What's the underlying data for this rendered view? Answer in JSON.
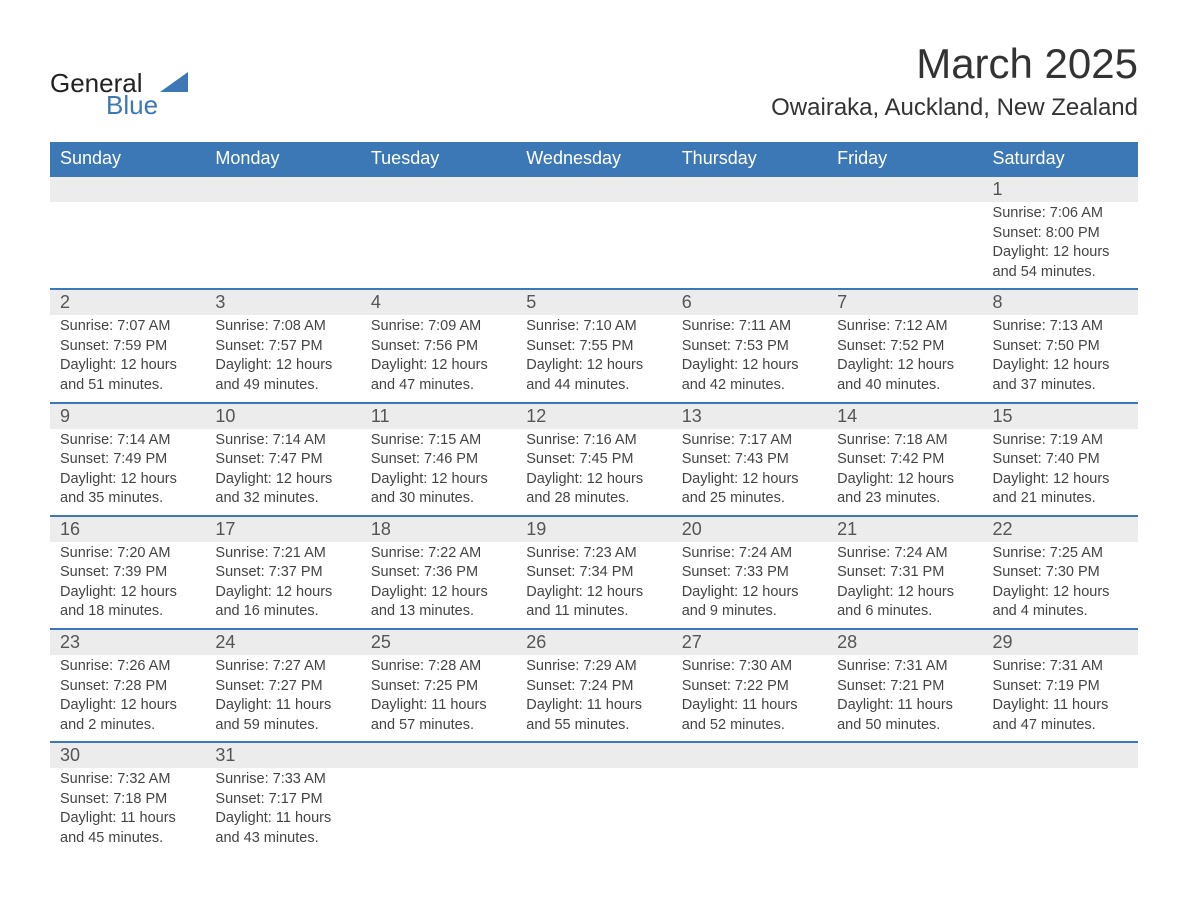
{
  "logo": {
    "word1": "General",
    "word2": "Blue"
  },
  "title": {
    "month": "March 2025",
    "location": "Owairaka, Auckland, New Zealand"
  },
  "colors": {
    "header_bg": "#3b78b5",
    "header_text": "#ffffff",
    "daynum_bg": "#ececec",
    "body_text": "#444444",
    "row_divider": "#3b78b5",
    "page_bg": "#ffffff",
    "logo_accent": "#3b78b5",
    "logo_text": "#222222"
  },
  "typography": {
    "title_month_fontsize": 42,
    "title_location_fontsize": 24,
    "weekday_fontsize": 18,
    "daynum_fontsize": 18,
    "body_fontsize": 14.5,
    "font_family": "Arial"
  },
  "layout": {
    "columns": 7,
    "rows": 6,
    "first_day_column_index": 6,
    "last_day": 31
  },
  "weekdays": [
    "Sunday",
    "Monday",
    "Tuesday",
    "Wednesday",
    "Thursday",
    "Friday",
    "Saturday"
  ],
  "days": [
    {
      "n": 1,
      "sunrise": "7:06 AM",
      "sunset": "8:00 PM",
      "daylight": "12 hours and 54 minutes."
    },
    {
      "n": 2,
      "sunrise": "7:07 AM",
      "sunset": "7:59 PM",
      "daylight": "12 hours and 51 minutes."
    },
    {
      "n": 3,
      "sunrise": "7:08 AM",
      "sunset": "7:57 PM",
      "daylight": "12 hours and 49 minutes."
    },
    {
      "n": 4,
      "sunrise": "7:09 AM",
      "sunset": "7:56 PM",
      "daylight": "12 hours and 47 minutes."
    },
    {
      "n": 5,
      "sunrise": "7:10 AM",
      "sunset": "7:55 PM",
      "daylight": "12 hours and 44 minutes."
    },
    {
      "n": 6,
      "sunrise": "7:11 AM",
      "sunset": "7:53 PM",
      "daylight": "12 hours and 42 minutes."
    },
    {
      "n": 7,
      "sunrise": "7:12 AM",
      "sunset": "7:52 PM",
      "daylight": "12 hours and 40 minutes."
    },
    {
      "n": 8,
      "sunrise": "7:13 AM",
      "sunset": "7:50 PM",
      "daylight": "12 hours and 37 minutes."
    },
    {
      "n": 9,
      "sunrise": "7:14 AM",
      "sunset": "7:49 PM",
      "daylight": "12 hours and 35 minutes."
    },
    {
      "n": 10,
      "sunrise": "7:14 AM",
      "sunset": "7:47 PM",
      "daylight": "12 hours and 32 minutes."
    },
    {
      "n": 11,
      "sunrise": "7:15 AM",
      "sunset": "7:46 PM",
      "daylight": "12 hours and 30 minutes."
    },
    {
      "n": 12,
      "sunrise": "7:16 AM",
      "sunset": "7:45 PM",
      "daylight": "12 hours and 28 minutes."
    },
    {
      "n": 13,
      "sunrise": "7:17 AM",
      "sunset": "7:43 PM",
      "daylight": "12 hours and 25 minutes."
    },
    {
      "n": 14,
      "sunrise": "7:18 AM",
      "sunset": "7:42 PM",
      "daylight": "12 hours and 23 minutes."
    },
    {
      "n": 15,
      "sunrise": "7:19 AM",
      "sunset": "7:40 PM",
      "daylight": "12 hours and 21 minutes."
    },
    {
      "n": 16,
      "sunrise": "7:20 AM",
      "sunset": "7:39 PM",
      "daylight": "12 hours and 18 minutes."
    },
    {
      "n": 17,
      "sunrise": "7:21 AM",
      "sunset": "7:37 PM",
      "daylight": "12 hours and 16 minutes."
    },
    {
      "n": 18,
      "sunrise": "7:22 AM",
      "sunset": "7:36 PM",
      "daylight": "12 hours and 13 minutes."
    },
    {
      "n": 19,
      "sunrise": "7:23 AM",
      "sunset": "7:34 PM",
      "daylight": "12 hours and 11 minutes."
    },
    {
      "n": 20,
      "sunrise": "7:24 AM",
      "sunset": "7:33 PM",
      "daylight": "12 hours and 9 minutes."
    },
    {
      "n": 21,
      "sunrise": "7:24 AM",
      "sunset": "7:31 PM",
      "daylight": "12 hours and 6 minutes."
    },
    {
      "n": 22,
      "sunrise": "7:25 AM",
      "sunset": "7:30 PM",
      "daylight": "12 hours and 4 minutes."
    },
    {
      "n": 23,
      "sunrise": "7:26 AM",
      "sunset": "7:28 PM",
      "daylight": "12 hours and 2 minutes."
    },
    {
      "n": 24,
      "sunrise": "7:27 AM",
      "sunset": "7:27 PM",
      "daylight": "11 hours and 59 minutes."
    },
    {
      "n": 25,
      "sunrise": "7:28 AM",
      "sunset": "7:25 PM",
      "daylight": "11 hours and 57 minutes."
    },
    {
      "n": 26,
      "sunrise": "7:29 AM",
      "sunset": "7:24 PM",
      "daylight": "11 hours and 55 minutes."
    },
    {
      "n": 27,
      "sunrise": "7:30 AM",
      "sunset": "7:22 PM",
      "daylight": "11 hours and 52 minutes."
    },
    {
      "n": 28,
      "sunrise": "7:31 AM",
      "sunset": "7:21 PM",
      "daylight": "11 hours and 50 minutes."
    },
    {
      "n": 29,
      "sunrise": "7:31 AM",
      "sunset": "7:19 PM",
      "daylight": "11 hours and 47 minutes."
    },
    {
      "n": 30,
      "sunrise": "7:32 AM",
      "sunset": "7:18 PM",
      "daylight": "11 hours and 45 minutes."
    },
    {
      "n": 31,
      "sunrise": "7:33 AM",
      "sunset": "7:17 PM",
      "daylight": "11 hours and 43 minutes."
    }
  ],
  "labels": {
    "sunrise": "Sunrise: ",
    "sunset": "Sunset: ",
    "daylight": "Daylight: "
  }
}
